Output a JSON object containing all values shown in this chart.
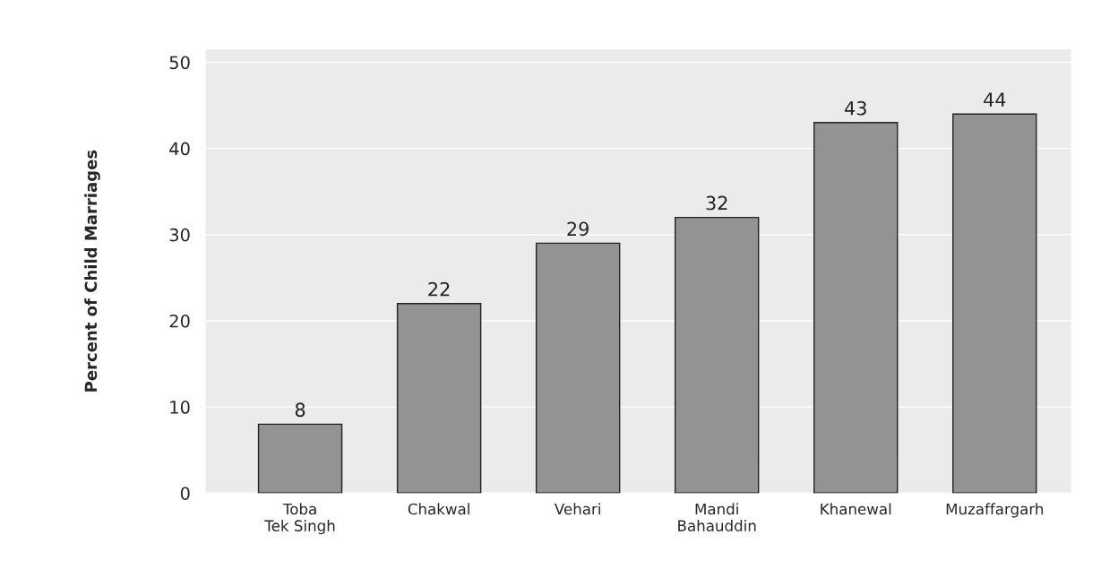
{
  "chart_data": {
    "type": "bar",
    "ylabel": "Percent of Child Marriages",
    "categories": [
      "Toba\nTek Singh",
      "Chakwal",
      "Vehari",
      "Mandi\nBahauddin",
      "Khanewal",
      "Muzaffargarh"
    ],
    "values": [
      8,
      22,
      29,
      32,
      43,
      44
    ],
    "color": "#939393",
    "ylim": [
      0,
      51.5
    ],
    "yticks": [
      0,
      10,
      20,
      30,
      40,
      50
    ],
    "grid": "y",
    "data_labels": true
  }
}
